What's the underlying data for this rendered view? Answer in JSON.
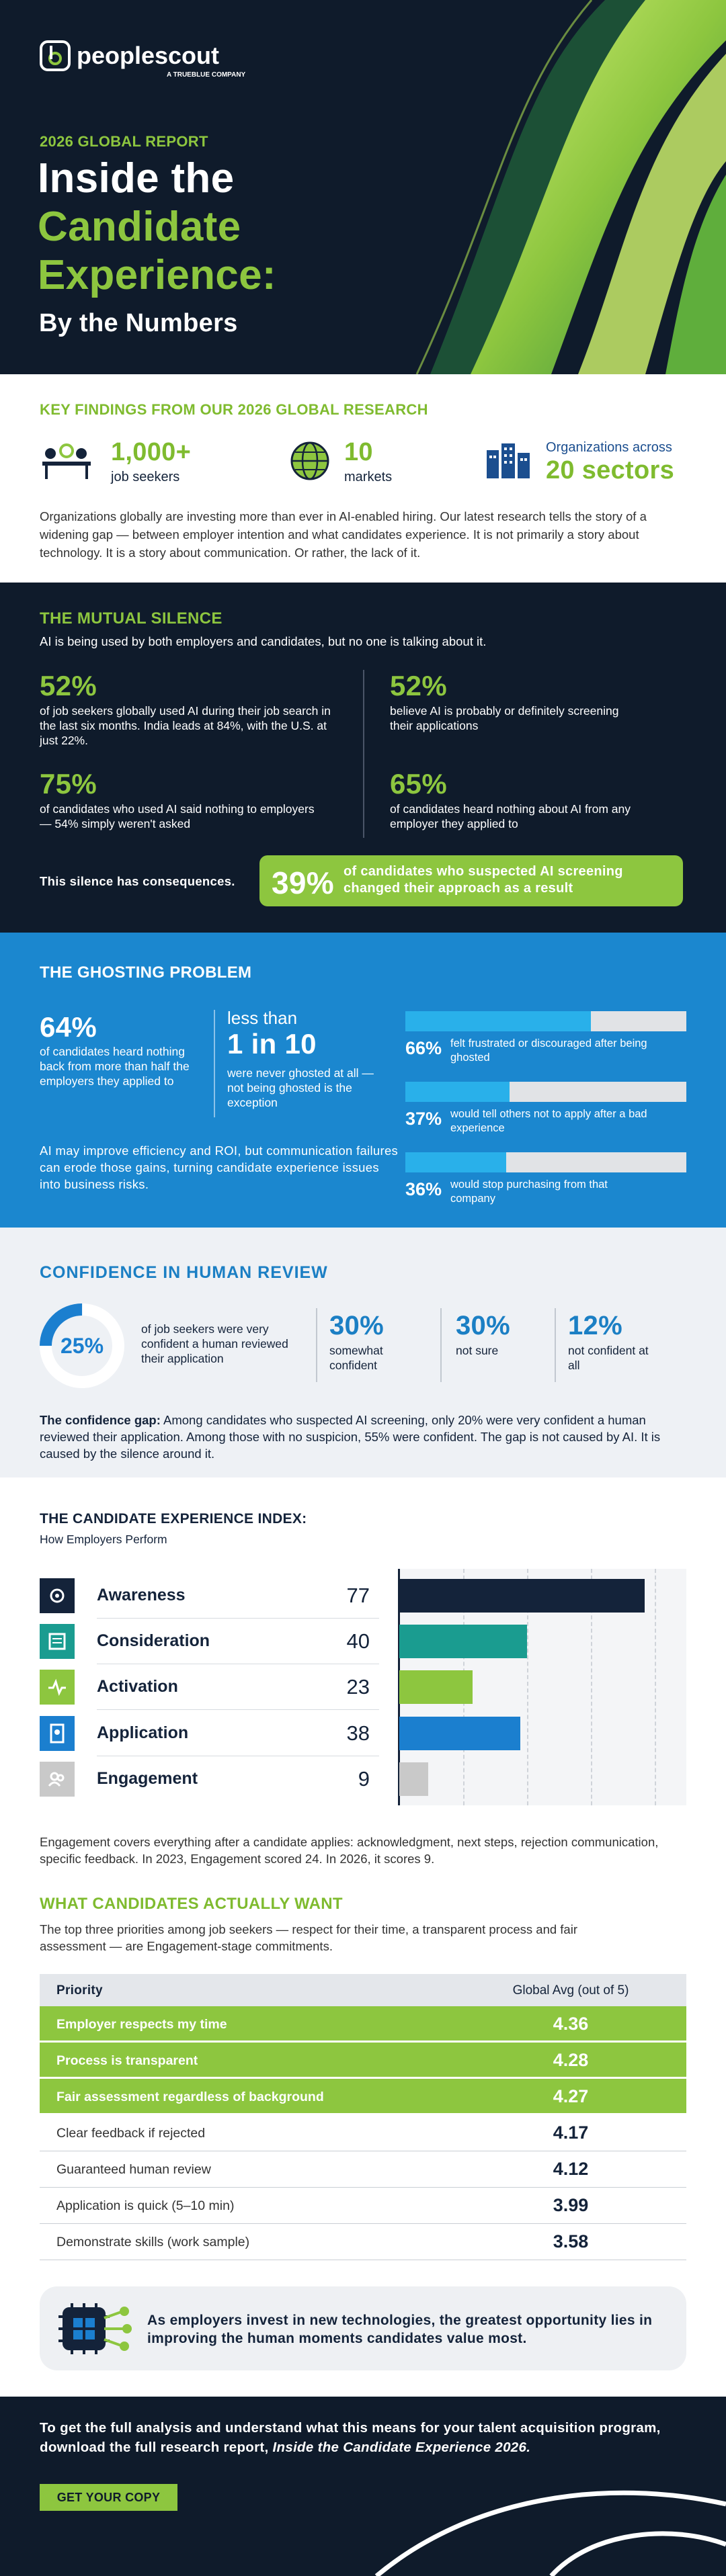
{
  "header": {
    "logo": "peoplescout",
    "logo_tagline": "A TRUEBLUE COMPANY",
    "eyebrow": "2026 GLOBAL REPORT",
    "title_lines": [
      "Inside the",
      "Candidate",
      "Experience:"
    ],
    "subtitle": "By the Numbers"
  },
  "key_findings": {
    "heading": "KEY FINDINGS FROM OUR 2026 GLOBAL RESEARCH",
    "stats": [
      {
        "value": "1,000+",
        "label": "job seekers"
      },
      {
        "value": "10",
        "label": "markets"
      },
      {
        "label": "Organizations across",
        "value": "20 sectors"
      }
    ],
    "body": "Organizations globally are investing more than ever in AI-enabled hiring. Our latest research tells the story of a widening gap — between employer intention and what candidates experience. It is not primarily a story about technology. It is a story about communication. Or rather, the lack of it."
  },
  "mutual_silence": {
    "heading": "THE MUTUAL SILENCE",
    "intro": "AI is being used by both employers and candidates, but no one is talking about it.",
    "stats": [
      {
        "value": "52%",
        "text": "of job seekers globally used AI during their job search in the last six months. India leads at 84%, with the U.S. at just 22%."
      },
      {
        "value": "75%",
        "text": "of candidates who used AI said nothing to employers — 54% simply weren't asked"
      },
      {
        "value": "52%",
        "text": "believe AI is probably or definitely screening their applications"
      },
      {
        "value": "65%",
        "text": "of candidates heard nothing about AI from any employer they applied to"
      }
    ],
    "consequence": "This silence has consequences.",
    "highlight": {
      "value": "39%",
      "text": "of candidates who suspected AI screening changed their approach as a result"
    }
  },
  "ghosting": {
    "heading": "THE GHOSTING PROBLEM",
    "stat": {
      "value": "64%",
      "text": "of candidates heard nothing back from more than half the employers they applied to"
    },
    "stat2": {
      "prefix": "less than",
      "value": "1 in 10",
      "text": "were never ghosted at all — not being ghosted is the exception"
    },
    "bars": {
      "values": [
        66,
        37,
        36
      ],
      "value_labels": [
        "66%",
        "37%",
        "36%"
      ],
      "xlim": [
        0,
        100
      ],
      "texts": [
        "felt frustrated or discouraged after being ghosted",
        "would tell others not to apply after a bad experience",
        "would stop purchasing from that company"
      ]
    },
    "body": "AI may improve efficiency and ROI, but communication failures can erode those gains, turning candidate experience issues into business risks."
  },
  "confidence": {
    "heading": "CONFIDENCE IN HUMAN REVIEW",
    "donut": {
      "value": 25,
      "value_label": "25%",
      "text": "of job seekers were very confident a human reviewed their application"
    },
    "stats": [
      {
        "value": "30%",
        "text": "somewhat confident"
      },
      {
        "value": "30%",
        "text": "not sure"
      },
      {
        "value": "12%",
        "text": "not confident at all"
      }
    ],
    "body_lead": "The confidence gap:",
    "body": "Among candidates who suspected AI screening, only 20% were very confident a human reviewed their application. Among those with no suspicion, 55% were confident. The gap is not caused by AI. It is caused by the silence around it."
  },
  "index": {
    "type": "bar",
    "title": "THE CANDIDATE EXPERIENCE INDEX:",
    "subtitle": "How Employers Perform",
    "categories": [
      "Awareness",
      "Consideration",
      "Activation",
      "Application",
      "Engagement"
    ],
    "values": [
      77,
      40,
      23,
      38,
      9
    ],
    "colors": [
      "#14233a",
      "#1a9c90",
      "#8dc63f",
      "#1b7fcf",
      "#c9c9c9"
    ],
    "xlim": [
      0,
      90
    ],
    "xticks": [
      20,
      40,
      60,
      80
    ],
    "grid": true,
    "body": "Engagement covers everything after a candidate applies: acknowledgment, next steps, rejection communication, specific feedback. In 2023, Engagement scored 24. In 2026, it scores 9."
  },
  "wants": {
    "heading": "WHAT CANDIDATES ACTUALLY WANT",
    "intro": "The top three priorities among job seekers — respect for their time, a transparent process and fair assessment — are Engagement-stage commitments.",
    "columns": [
      "Priority",
      "Global Avg (out of 5)"
    ],
    "rows": [
      {
        "priority": "Employer respects my time",
        "score": 4.36,
        "highlight": true
      },
      {
        "priority": "Process is transparent",
        "score": 4.28,
        "highlight": true
      },
      {
        "priority": "Fair assessment regardless of background",
        "score": 4.27,
        "highlight": true
      },
      {
        "priority": "Clear feedback if rejected",
        "score": 4.17,
        "highlight": false
      },
      {
        "priority": "Guaranteed human review",
        "score": 4.12,
        "highlight": false
      },
      {
        "priority": "Application is quick (5–10 min)",
        "score": 3.99,
        "highlight": false
      },
      {
        "priority": "Demonstrate skills (work sample)",
        "score": 3.58,
        "highlight": false
      }
    ]
  },
  "callout": {
    "text": "As employers invest in new technologies, the greatest opportunity lies in improving the human moments candidates value most."
  },
  "footer": {
    "text": "To get the full analysis and understand what this means for your talent acquisition program, download the full research report,",
    "report_title": "Inside the Candidate Experience 2026.",
    "button": "GET YOUR COPY"
  }
}
